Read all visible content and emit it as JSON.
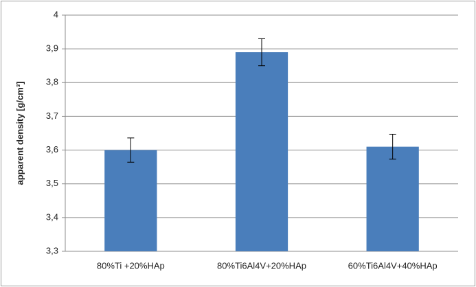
{
  "chart_data": {
    "type": "bar",
    "y_label": "apparent density [g/cm³]",
    "categories": [
      "80%Ti +20%HAp",
      "80%Ti6Al4V+20%HAp",
      "60%Ti6Al4V+40%HAp"
    ],
    "values": [
      3.6,
      3.89,
      3.61
    ],
    "errors": [
      0.036,
      0.04,
      0.037
    ],
    "color": "#4a7ebb",
    "ylim": [
      3.3,
      4
    ],
    "yticks": [
      {
        "value": 3.3,
        "label": "3,3"
      },
      {
        "value": 3.4,
        "label": "3,4"
      },
      {
        "value": 3.5,
        "label": "3,5"
      },
      {
        "value": 3.6,
        "label": "3,6"
      },
      {
        "value": 3.7,
        "label": "3,7"
      },
      {
        "value": 3.8,
        "label": "3,8"
      },
      {
        "value": 3.9,
        "label": "3,9"
      },
      4
    ],
    "grid": true
  }
}
